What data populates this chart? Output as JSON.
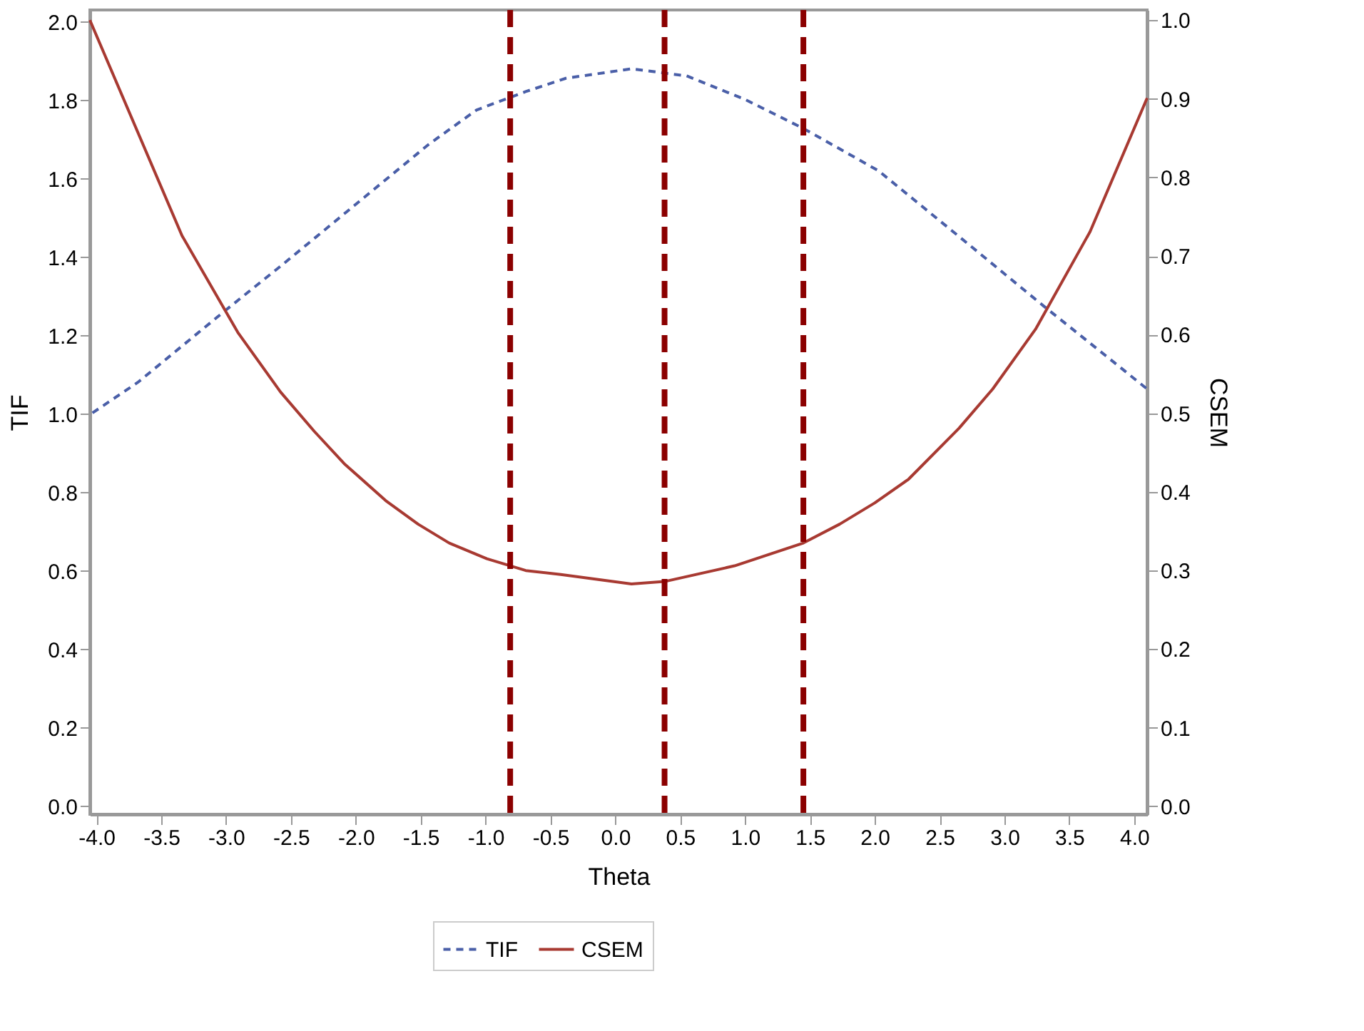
{
  "chart_data": {
    "type": "line",
    "xlabel": "Theta",
    "ylabel": "TIF",
    "y2label": "CSEM",
    "xlim": [
      -4.05,
      4.1
    ],
    "xticks": [
      {
        "value": -4,
        "label": "-4.0"
      },
      {
        "value": -3.5,
        "label": "-3.5"
      },
      {
        "value": -3,
        "label": "-3.0"
      },
      {
        "value": -2.5,
        "label": "-2.5"
      },
      {
        "value": -2,
        "label": "-2.0"
      },
      {
        "value": -1.5,
        "label": "-1.5"
      },
      {
        "value": -1,
        "label": "-1.0"
      },
      {
        "value": -0.5,
        "label": "-0.5"
      },
      {
        "value": 0,
        "label": "0.0"
      },
      {
        "value": 0.5,
        "label": "0.5"
      },
      {
        "value": 1,
        "label": "1.0"
      },
      {
        "value": 1.5,
        "label": "1.5"
      },
      {
        "value": 2,
        "label": "2.0"
      },
      {
        "value": 2.5,
        "label": "2.5"
      },
      {
        "value": 3,
        "label": "3.0"
      },
      {
        "value": 3.5,
        "label": "3.5"
      },
      {
        "value": 4,
        "label": "4.0"
      }
    ],
    "ylim": [
      -0.02,
      2.03
    ],
    "yticks": [
      {
        "value": 0,
        "label": "0.0"
      },
      0.2,
      0.4,
      0.6,
      0.8,
      {
        "value": 1,
        "label": "1.0"
      },
      1.2,
      1.4,
      1.6,
      1.8,
      {
        "value": 2,
        "label": "2.0"
      }
    ],
    "y2lim": [
      -0.01,
      1.013
    ],
    "y2ticks": [
      {
        "value": 0,
        "label": "0.0"
      },
      0.1,
      0.2,
      0.3,
      0.4,
      0.5,
      0.6,
      0.7,
      0.8,
      0.9,
      {
        "value": 1,
        "label": "1.0"
      }
    ],
    "grid": false,
    "legend": "bottom",
    "marker": "none",
    "series": [
      {
        "name": "TIF",
        "color": "#4a5fa8",
        "line_style": "dashed",
        "axis": "y",
        "x": [
          -4.03,
          -3.68,
          -3.33,
          -3.01,
          -2.58,
          -2.01,
          -1.44,
          -1.07,
          -0.69,
          -0.38,
          0.125,
          0.55,
          1.0,
          1.45,
          1.73,
          2.03,
          2.73,
          3.3,
          3.78,
          4.1
        ],
        "values": [
          1.003,
          1.081,
          1.176,
          1.263,
          1.377,
          1.532,
          1.687,
          1.775,
          1.822,
          1.856,
          1.88,
          1.862,
          1.802,
          1.728,
          1.676,
          1.62,
          1.431,
          1.276,
          1.149,
          1.064
        ]
      },
      {
        "name": "CSEM",
        "color": "#a83a32",
        "line_style": "solid",
        "axis": "y2",
        "x": [
          -4.05,
          -3.34,
          -2.91,
          -2.58,
          -2.32,
          -2.09,
          -1.77,
          -1.52,
          -1.28,
          -0.99,
          -0.69,
          -0.42,
          0.125,
          0.38,
          0.92,
          1.45,
          1.73,
          2.0,
          2.26,
          2.65,
          2.91,
          3.24,
          3.66,
          4.1
        ],
        "values": [
          1.0,
          0.726,
          0.603,
          0.527,
          0.477,
          0.436,
          0.389,
          0.359,
          0.335,
          0.315,
          0.3,
          0.295,
          0.283,
          0.286,
          0.306,
          0.335,
          0.359,
          0.386,
          0.416,
          0.481,
          0.531,
          0.607,
          0.731,
          0.901
        ]
      }
    ],
    "ref_lines": [
      {
        "axis": "x",
        "value": -0.81,
        "color": "#8b0000",
        "line_style": "dashed"
      },
      {
        "axis": "x",
        "value": 0.38,
        "color": "#8b0000",
        "line_style": "dashed"
      },
      {
        "axis": "x",
        "value": 1.45,
        "color": "#8b0000",
        "line_style": "dashed"
      }
    ]
  }
}
